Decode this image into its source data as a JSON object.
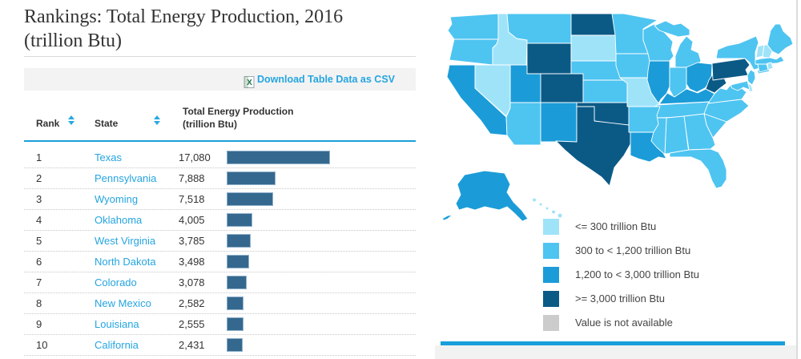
{
  "page": {
    "title_line1": "Rankings: Total Energy Production, 2016",
    "title_line2": "(trillion Btu)"
  },
  "toolbar": {
    "download_label": "Download Table Data as CSV"
  },
  "colors": {
    "accent_blue": "#1a9fdb",
    "link_blue": "#25a5e0",
    "sort_arrow_blue": "#29a8e0",
    "bar_fill": "#35688e",
    "bar_border": "#8fb0ca",
    "title_text": "#333333",
    "csv_bar_bg": "#f3f3f3",
    "footer_gray": "#f2f2f2"
  },
  "table": {
    "headers": {
      "rank": "Rank",
      "state": "State",
      "value_line1": "Total Energy Production",
      "value_line2": "(trillion Btu)"
    },
    "max_value": 17080,
    "rows": [
      {
        "rank": "1",
        "state": "Texas",
        "value": "17,080"
      },
      {
        "rank": "2",
        "state": "Pennsylvania",
        "value": "7,888"
      },
      {
        "rank": "3",
        "state": "Wyoming",
        "value": "7,518"
      },
      {
        "rank": "4",
        "state": "Oklahoma",
        "value": "4,005"
      },
      {
        "rank": "5",
        "state": "West Virginia",
        "value": "3,785"
      },
      {
        "rank": "6",
        "state": "North Dakota",
        "value": "3,498"
      },
      {
        "rank": "7",
        "state": "Colorado",
        "value": "3,078"
      },
      {
        "rank": "8",
        "state": "New Mexico",
        "value": "2,582"
      },
      {
        "rank": "9",
        "state": "Louisiana",
        "value": "2,555"
      },
      {
        "rank": "10",
        "state": "California",
        "value": "2,431"
      }
    ]
  },
  "legend": {
    "items": [
      {
        "label": "<= 300 trillion Btu",
        "color": "#9fe3f9"
      },
      {
        "label": "300 to < 1,200 trillion Btu",
        "color": "#4ec4f1"
      },
      {
        "label": "1,200 to < 3,000 trillion Btu",
        "color": "#1b9cd8"
      },
      {
        "label": ">= 3,000 trillion Btu",
        "color": "#0b5a86"
      },
      {
        "label": "Value is not available",
        "color": "#cccccc"
      }
    ]
  },
  "map": {
    "category_colors": {
      "1": "#9fe3f9",
      "2": "#4ec4f1",
      "3": "#1b9cd8",
      "4": "#0b5a86",
      "na": "#cccccc"
    }
  },
  "chart_data": [
    {
      "type": "bar",
      "orientation": "horizontal",
      "title": "Rankings: Total Energy Production, 2016 (trillion Btu)",
      "categories": [
        "Texas",
        "Pennsylvania",
        "Wyoming",
        "Oklahoma",
        "West Virginia",
        "North Dakota",
        "Colorado",
        "New Mexico",
        "Louisiana",
        "California"
      ],
      "values": [
        17080,
        7888,
        7518,
        4005,
        3785,
        3498,
        3078,
        2582,
        2555,
        2431
      ],
      "xlabel": "Total Energy Production (trillion Btu)",
      "ylabel": "State rank",
      "xlim": [
        0,
        17080
      ]
    },
    {
      "type": "heatmap",
      "subtype": "us-choropleth",
      "title": "Total Energy Production by State, 2016",
      "bins": [
        "<= 300 trillion Btu",
        "300 to < 1,200 trillion Btu",
        "1,200 to < 3,000 trillion Btu",
        ">= 3,000 trillion Btu",
        "Value is not available"
      ],
      "state_bins": {
        "WA": 2,
        "OR": 2,
        "CA": 3,
        "NV": 1,
        "ID": 1,
        "MT": 2,
        "WY": 4,
        "UT": 3,
        "CO": 4,
        "AZ": 2,
        "NM": 3,
        "ND": 4,
        "SD": 1,
        "NE": 2,
        "KS": 2,
        "OK": 4,
        "TX": 4,
        "MN": 2,
        "IA": 2,
        "MO": 1,
        "AR": 2,
        "LA": 3,
        "WI": 2,
        "IL": 3,
        "MI": 2,
        "IN": 2,
        "OH": 3,
        "KY": 3,
        "TN": 2,
        "MS": 2,
        "AL": 2,
        "GA": 2,
        "FL": 2,
        "SC": 2,
        "NC": 2,
        "VA": 2,
        "WV": 4,
        "PA": 4,
        "NY": 2,
        "NJ": 2,
        "DE": 1,
        "MD": 2,
        "ME": 2,
        "NH": 1,
        "VT": 1,
        "MA": 2,
        "CT": 2,
        "RI": 1,
        "AK": 3,
        "HI": 1
      }
    }
  ]
}
